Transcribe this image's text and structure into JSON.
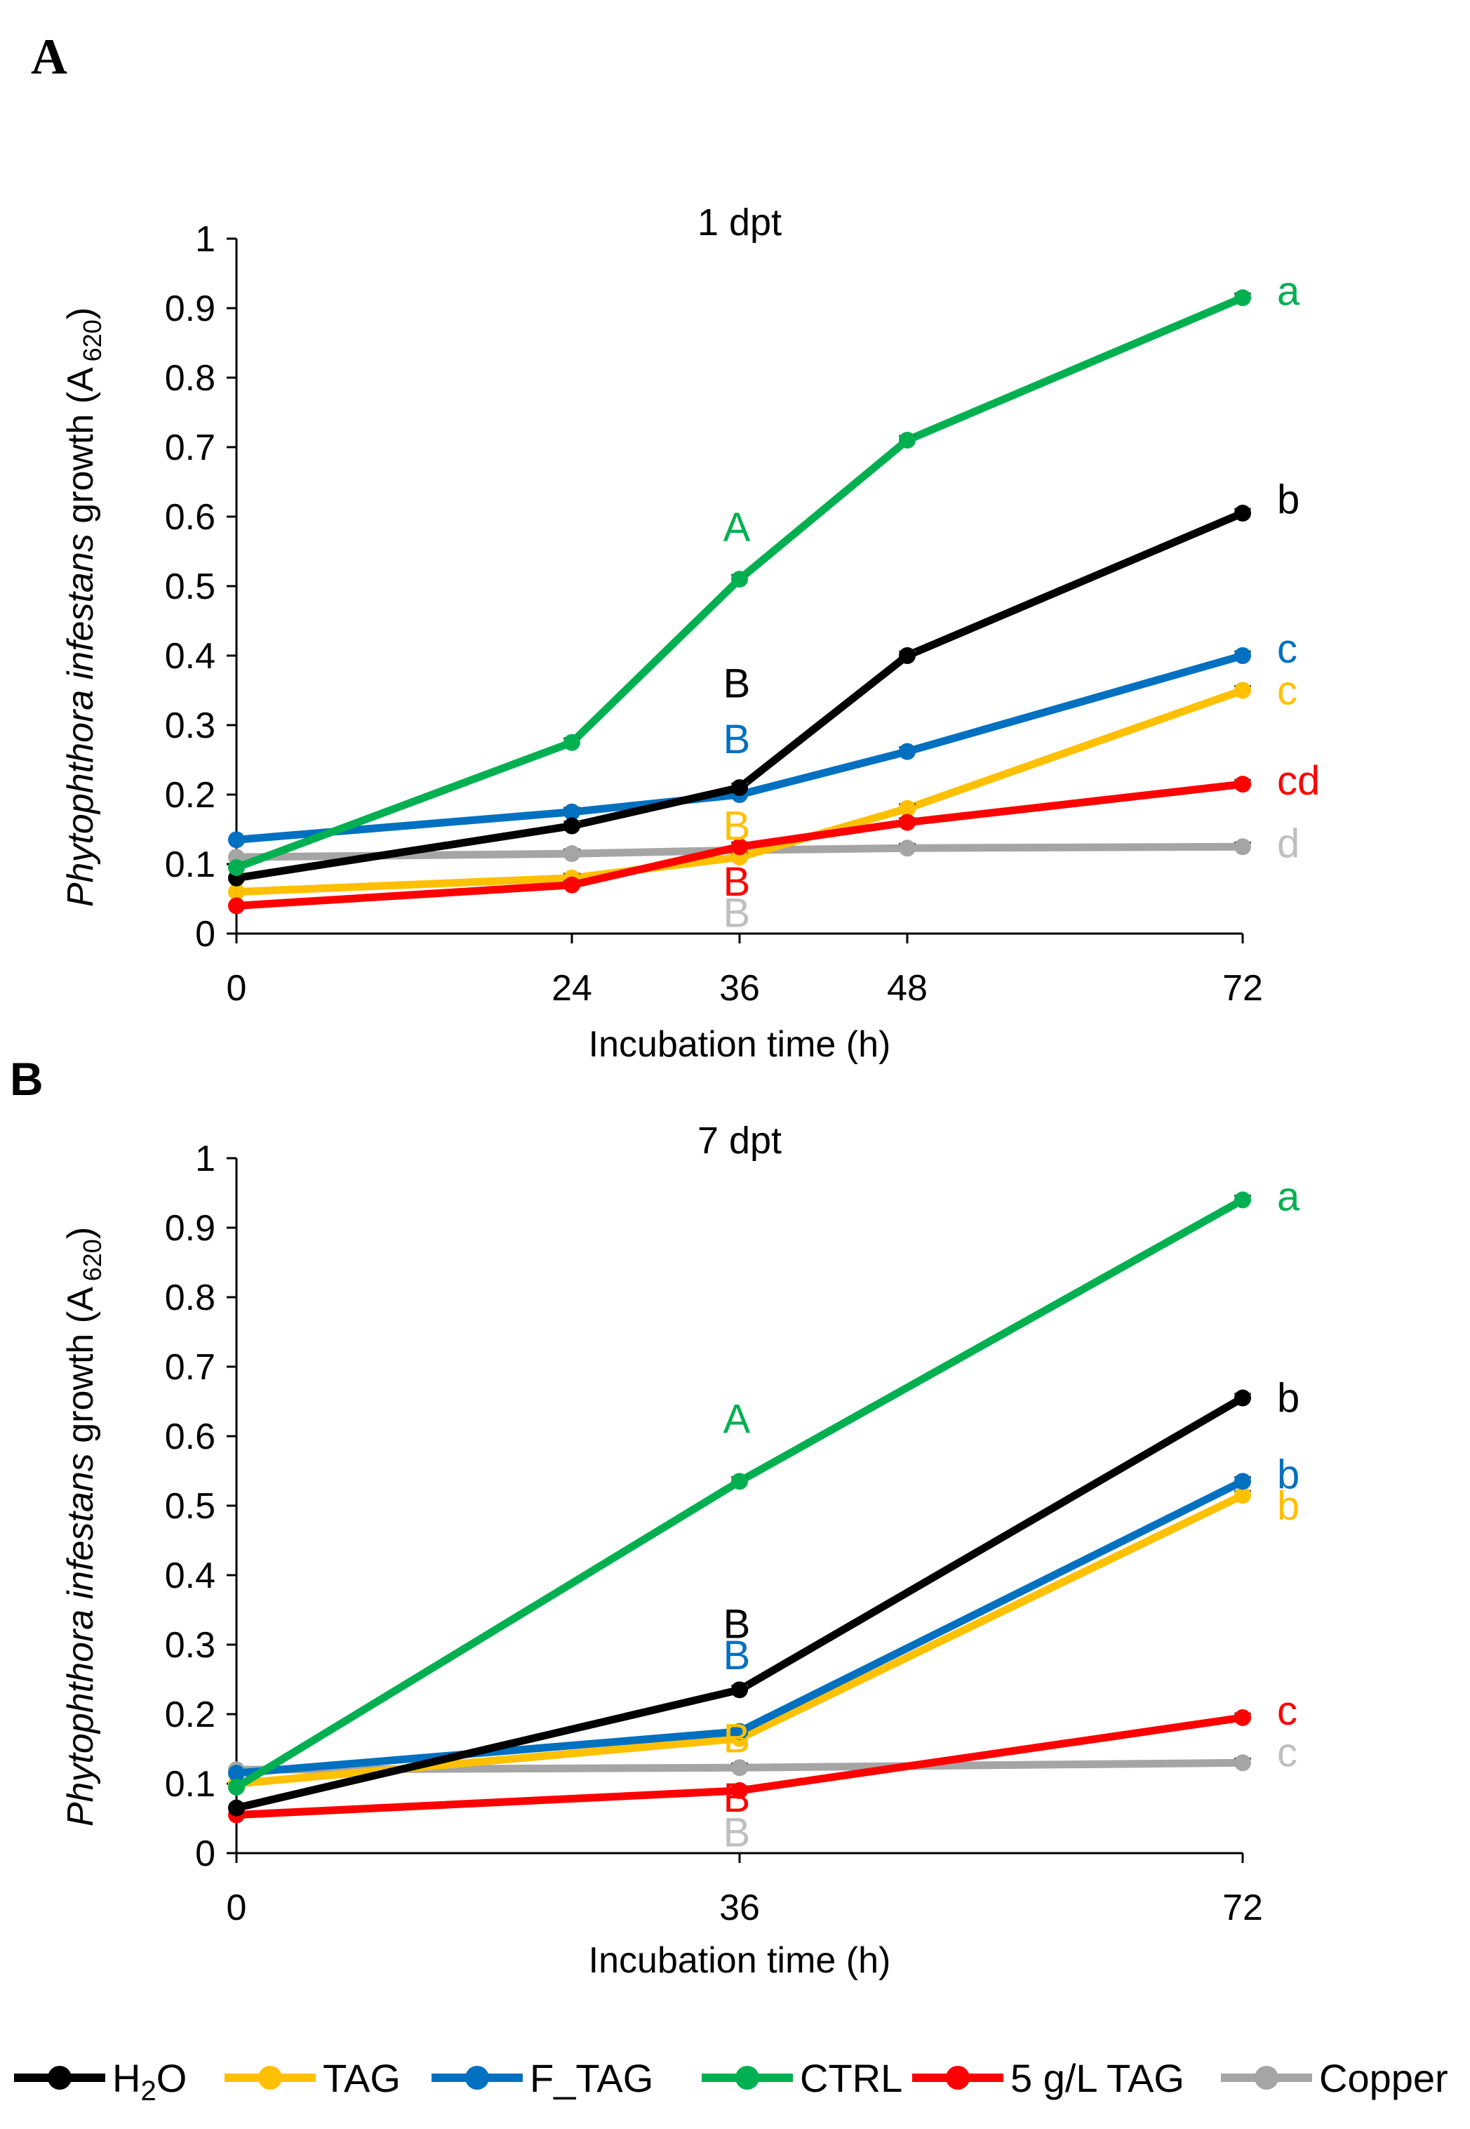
{
  "colors": {
    "H2O": "#000000",
    "TAG": "#FFC000",
    "F_TAG": "#0070C0",
    "CTRL": "#00B050",
    "TAG5": "#FF0000",
    "Copper": "#A5A5A5",
    "Copper_label": "#BFBFBF"
  },
  "legend": {
    "h2o_main": "H",
    "h2o_sub": "2",
    "h2o_tail": "O",
    "tag": "TAG",
    "ftag": "F_TAG",
    "ctrl": "CTRL",
    "tag5": "5 g/L TAG",
    "copper": "Copper"
  },
  "chart_data": [
    {
      "panel": "A",
      "type": "line",
      "title": "1 dpt",
      "xlabel": "Incubation time (h)",
      "ylabel_pre": "Phytophthora infestans",
      "ylabel_mid": " growth (A",
      "ylabel_sub": "620",
      "ylabel_post": ")",
      "x": [
        0,
        24,
        36,
        48,
        72
      ],
      "xlim": [
        0,
        72
      ],
      "xticks": [
        "0",
        "24",
        "36",
        "48",
        "72"
      ],
      "ylim": [
        0,
        1
      ],
      "yticks": [
        "0",
        "0.1",
        "0.2",
        "0.3",
        "0.4",
        "0.5",
        "0.6",
        "0.7",
        "0.8",
        "0.9",
        "1"
      ],
      "series": [
        {
          "name": "Copper",
          "color_key": "Copper",
          "values": [
            0.11,
            0.115,
            0.12,
            0.123,
            0.125
          ],
          "end_label": "d",
          "end_label_color": "Copper_label"
        },
        {
          "name": "TAG",
          "color_key": "TAG",
          "values": [
            0.06,
            0.08,
            0.11,
            0.18,
            0.35
          ],
          "end_label": "c",
          "end_label_color": "TAG"
        },
        {
          "name": "5 g/L TAG",
          "color_key": "TAG5",
          "values": [
            0.04,
            0.07,
            0.125,
            0.16,
            0.215
          ],
          "end_label": "cd",
          "end_label_color": "TAG5"
        },
        {
          "name": "F_TAG",
          "color_key": "F_TAG",
          "values": [
            0.135,
            0.175,
            0.2,
            0.262,
            0.4
          ],
          "end_label": "c",
          "end_label_color": "F_TAG"
        },
        {
          "name": "H2O",
          "color_key": "H2O",
          "values": [
            0.08,
            0.155,
            0.21,
            0.4,
            0.605
          ],
          "end_label": "b",
          "end_label_color": "H2O"
        },
        {
          "name": "CTRL",
          "color_key": "CTRL",
          "values": [
            0.095,
            0.275,
            0.51,
            0.71,
            0.915
          ],
          "end_label": "a",
          "end_label_color": "CTRL"
        }
      ],
      "mid_labels": [
        {
          "text": "A",
          "color_key": "CTRL",
          "y": 0.585
        },
        {
          "text": "B",
          "color_key": "H2O",
          "y": 0.36
        },
        {
          "text": "B",
          "color_key": "F_TAG",
          "y": 0.28
        },
        {
          "text": "B",
          "color_key": "TAG",
          "y": 0.155
        },
        {
          "text": "B",
          "color_key": "TAG5",
          "y": 0.075
        },
        {
          "text": "B",
          "color_key": "Copper_label",
          "y": 0.03
        }
      ],
      "end_label_y": [
        0.925,
        0.625,
        0.41,
        0.35,
        0.22,
        0.13
      ]
    },
    {
      "panel": "B",
      "type": "line",
      "title": "7 dpt",
      "xlabel": "Incubation time (h)",
      "ylabel_pre": "Phytophthora infestans",
      "ylabel_mid": " growth (A",
      "ylabel_sub": "620",
      "ylabel_post": ")",
      "x": [
        0,
        36,
        72
      ],
      "xlim": [
        0,
        72
      ],
      "xticks": [
        "0",
        "36",
        "72"
      ],
      "ylim": [
        0,
        1
      ],
      "yticks": [
        "0",
        "0.1",
        "0.2",
        "0.3",
        "0.4",
        "0.5",
        "0.6",
        "0.7",
        "0.8",
        "0.9",
        "1"
      ],
      "series": [
        {
          "name": "Copper",
          "color_key": "Copper",
          "values": [
            0.12,
            0.123,
            0.13
          ],
          "end_label": "c",
          "end_label_color": "Copper_label"
        },
        {
          "name": "TAG",
          "color_key": "TAG",
          "values": [
            0.1,
            0.165,
            0.515
          ],
          "end_label": "b",
          "end_label_color": "TAG"
        },
        {
          "name": "5 g/L TAG",
          "color_key": "TAG5",
          "values": [
            0.055,
            0.09,
            0.195
          ],
          "end_label": "c",
          "end_label_color": "TAG5"
        },
        {
          "name": "F_TAG",
          "color_key": "F_TAG",
          "values": [
            0.115,
            0.175,
            0.535
          ],
          "end_label": "b",
          "end_label_color": "F_TAG"
        },
        {
          "name": "H2O",
          "color_key": "H2O",
          "values": [
            0.065,
            0.235,
            0.655
          ],
          "end_label": "b",
          "end_label_color": "H2O"
        },
        {
          "name": "CTRL",
          "color_key": "CTRL",
          "values": [
            0.095,
            0.535,
            0.94
          ],
          "end_label": "a",
          "end_label_color": "CTRL"
        }
      ],
      "mid_labels": [
        {
          "text": "A",
          "color_key": "CTRL",
          "y": 0.625
        },
        {
          "text": "B",
          "color_key": "H2O",
          "y": 0.33
        },
        {
          "text": "B",
          "color_key": "F_TAG",
          "y": 0.285
        },
        {
          "text": "B",
          "color_key": "TAG",
          "y": 0.165
        },
        {
          "text": "B",
          "color_key": "TAG5",
          "y": 0.08
        },
        {
          "text": "B",
          "color_key": "Copper_label",
          "y": 0.03
        }
      ],
      "end_label_y": [
        0.945,
        0.655,
        0.545,
        0.5,
        0.205,
        0.145
      ]
    }
  ]
}
